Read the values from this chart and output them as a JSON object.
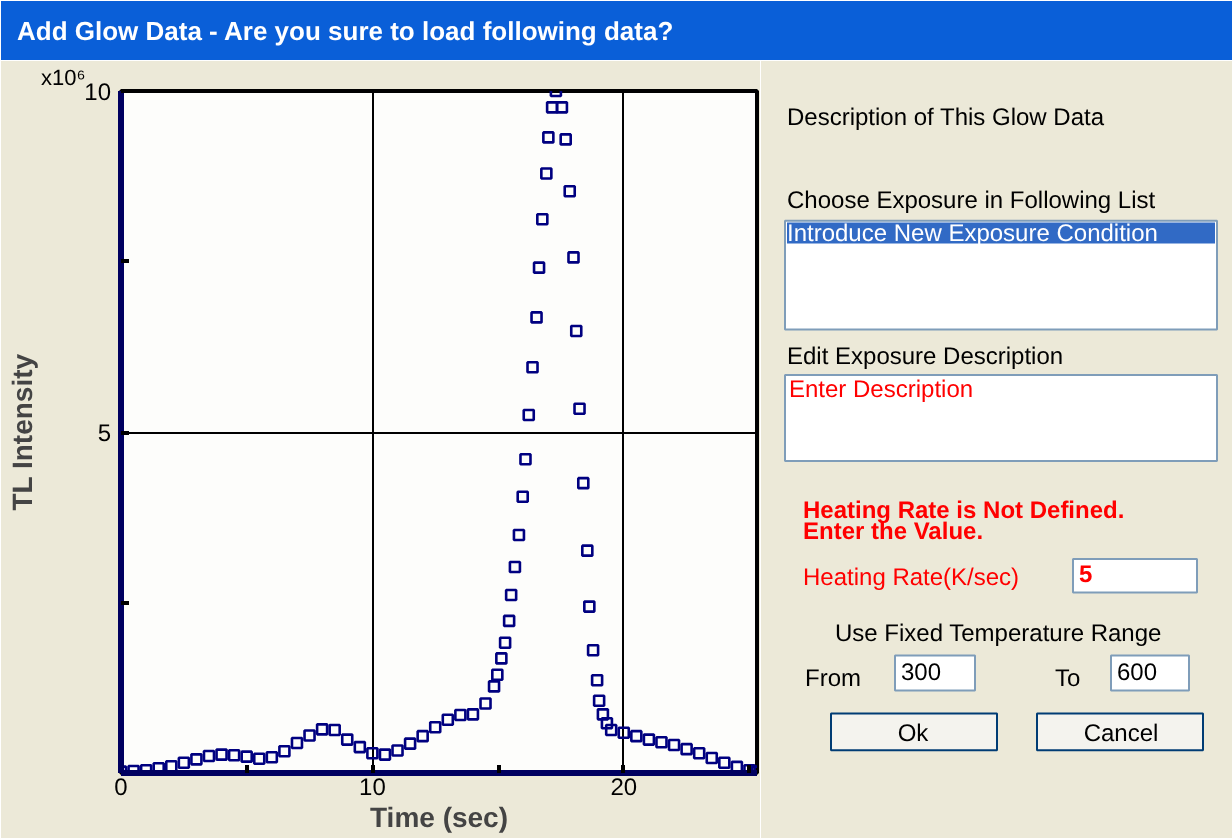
{
  "chart_data": [
    {
      "type": "scatter",
      "xlabel": "Time (sec)",
      "ylabel": "TL Intensity",
      "annotations": [
        "x10⁶"
      ],
      "xlim": [
        0,
        25.3
      ],
      "ylim": [
        0,
        10
      ],
      "xticks": [
        0,
        {
          "value": 5,
          "label": null
        },
        10,
        {
          "value": 15,
          "label": null
        },
        20,
        {
          "value": 25,
          "label": null
        }
      ],
      "yticks": [
        {
          "value": 2.5,
          "label": null
        },
        5,
        {
          "value": 7.5,
          "label": null
        },
        10
      ],
      "grid": true,
      "marker": "square",
      "series": [
        {
          "color": "#000080",
          "x": [
            0,
            0.5,
            1,
            1.5,
            2,
            2.5,
            3,
            3.5,
            4,
            4.5,
            5,
            5.5,
            6,
            6.5,
            7,
            7.5,
            8,
            8.5,
            9,
            9.5,
            10,
            10.5,
            11,
            11.5,
            12,
            12.5,
            13,
            13.5,
            14,
            14.5,
            14.84,
            14.97,
            15.13,
            15.28,
            15.44,
            15.52,
            15.67,
            15.83,
            15.98,
            16.09,
            16.22,
            16.37,
            16.53,
            16.63,
            16.76,
            16.92,
            17.0,
            17.15,
            17.3,
            17.54,
            17.69,
            17.85,
            18.0,
            18.11,
            18.24,
            18.39,
            18.55,
            18.63,
            18.78,
            18.94,
            19.02,
            19.17,
            19.33,
            19.5,
            20,
            20.5,
            21,
            21.5,
            22,
            22.5,
            23,
            23.5,
            24,
            24.5,
            25,
            25.3
          ],
          "values": [
            0.02,
            0.03,
            0.04,
            0.07,
            0.1,
            0.15,
            0.2,
            0.25,
            0.27,
            0.26,
            0.24,
            0.21,
            0.23,
            0.32,
            0.44,
            0.55,
            0.64,
            0.63,
            0.49,
            0.38,
            0.29,
            0.27,
            0.33,
            0.43,
            0.54,
            0.67,
            0.78,
            0.85,
            0.86,
            1.02,
            1.27,
            1.44,
            1.68,
            1.91,
            2.23,
            2.61,
            3.02,
            3.49,
            4.05,
            4.6,
            5.25,
            5.95,
            6.68,
            7.41,
            8.12,
            8.79,
            9.32,
            9.76,
            10.0,
            9.76,
            9.29,
            8.53,
            7.56,
            6.48,
            5.34,
            4.25,
            3.26,
            2.44,
            1.8,
            1.36,
            1.06,
            0.86,
            0.73,
            0.63,
            0.59,
            0.54,
            0.49,
            0.45,
            0.41,
            0.35,
            0.29,
            0.22,
            0.15,
            0.09,
            0.04,
            0.02
          ]
        }
      ]
    },
    {
      "type": "other",
      "title": "Add Glow Data - Are you sure to load following data?",
      "annotations": [
        "Description of This Glow Data",
        "Choose Exposure in Following List",
        "Introduce New Exposure Condition",
        "Edit Exposure Description",
        "Enter Description",
        "Heating Rate is Not Defined.",
        "Enter the Value.",
        "Heating Rate(K/sec)",
        "5",
        "Use Fixed Temperature Range",
        "From",
        "300",
        "To",
        "600",
        "Ok",
        "Cancel"
      ]
    }
  ]
}
